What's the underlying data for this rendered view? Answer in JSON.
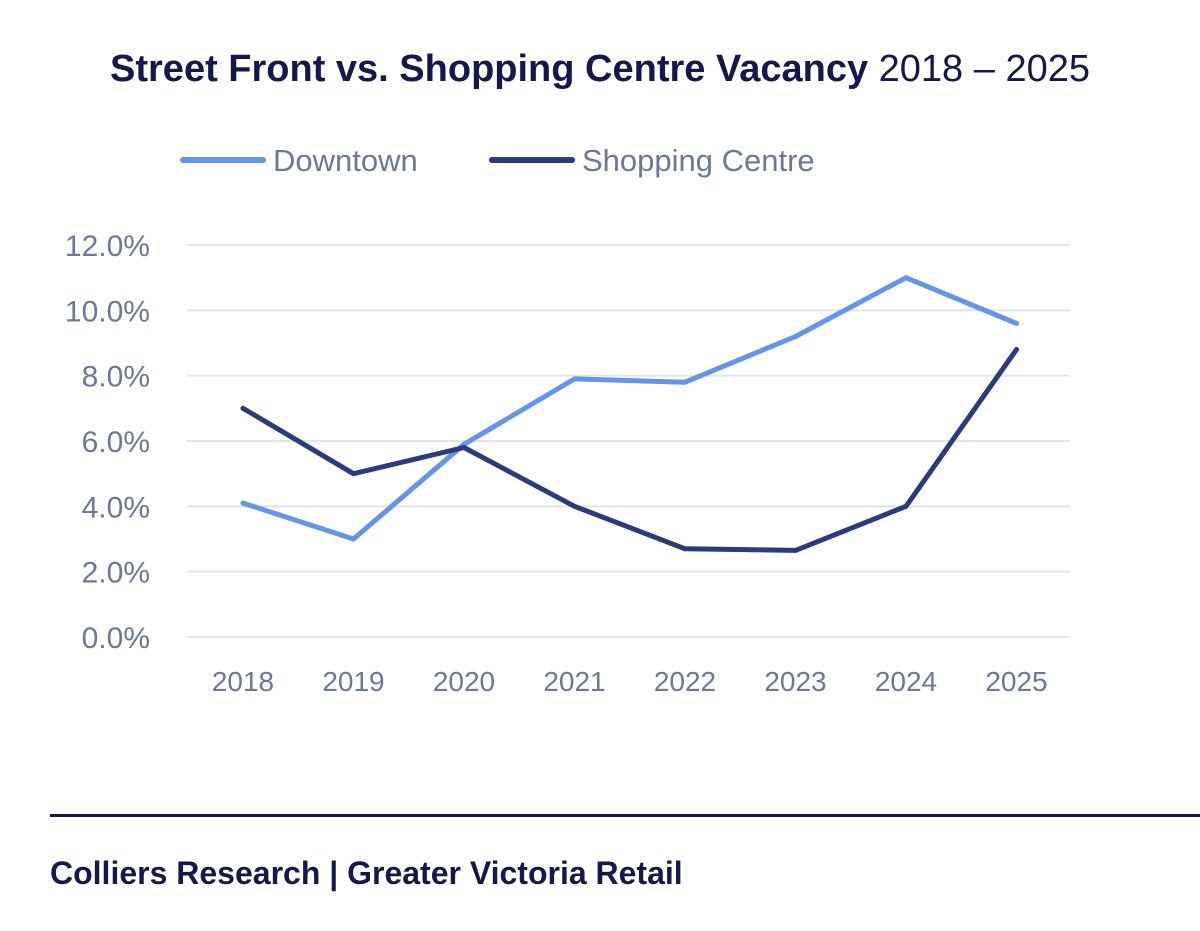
{
  "title": {
    "main": "Street Front vs. Shopping Centre Vacancy",
    "period": "2018 – 2025"
  },
  "footer": {
    "text": "Colliers Research | Greater Victoria Retail"
  },
  "colors": {
    "downtown": "#6395e8",
    "shopping_centre": "#2b3b7c",
    "grid": "#e1e4ee",
    "tick_text": "#6b7896",
    "title": "#14184a"
  },
  "chart_data": {
    "type": "line",
    "title": "Street Front vs. Shopping Centre Vacancy 2018 – 2025",
    "xlabel": "",
    "ylabel": "",
    "x": [
      "2018",
      "2019",
      "2020",
      "2021",
      "2022",
      "2023",
      "2024",
      "2025"
    ],
    "y_ticks": [
      "0.0%",
      "2.0%",
      "4.0%",
      "6.0%",
      "8.0%",
      "10.0%",
      "12.0%"
    ],
    "ylim": [
      0,
      12
    ],
    "grid": true,
    "legend": "top-left",
    "series": [
      {
        "name": "Downtown",
        "color": "#6395e8",
        "values": [
          4.1,
          3.0,
          5.9,
          7.9,
          7.8,
          9.2,
          11.0,
          9.6
        ]
      },
      {
        "name": "Shopping Centre",
        "color": "#2b3b7c",
        "values": [
          7.0,
          5.0,
          5.8,
          4.0,
          2.7,
          2.65,
          4.0,
          8.8
        ]
      }
    ]
  }
}
